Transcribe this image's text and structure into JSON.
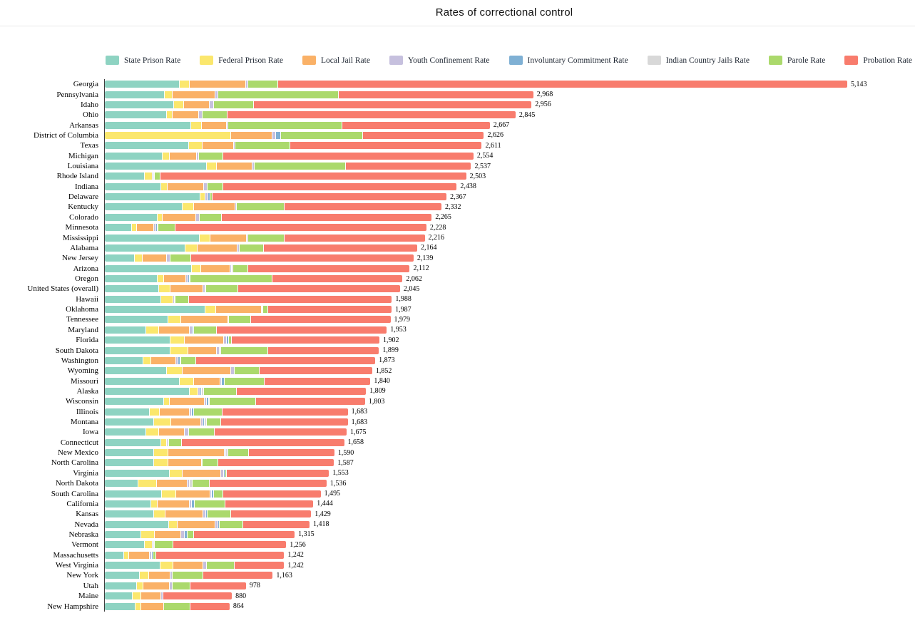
{
  "title": "Rates of correctional control",
  "colors": {
    "state_prison": "#8ed3c2",
    "federal_prison": "#fbe76d",
    "local_jail": "#fab167",
    "youth_confinement": "#c6c0de",
    "involuntary_commitment": "#7fb0d4",
    "indian_country_jails": "#d8d8d8",
    "parole": "#abd96c",
    "probation": "#f87c6d"
  },
  "legend": [
    {
      "key": "state_prison",
      "label": "State Prison Rate"
    },
    {
      "key": "federal_prison",
      "label": "Federal Prison Rate"
    },
    {
      "key": "local_jail",
      "label": "Local Jail Rate"
    },
    {
      "key": "youth_confinement",
      "label": "Youth Confinement Rate"
    },
    {
      "key": "involuntary_commitment",
      "label": "Involuntary Commitment Rate"
    },
    {
      "key": "indian_country_jails",
      "label": "Indian Country Jails Rate"
    },
    {
      "key": "parole",
      "label": "Parole Rate"
    },
    {
      "key": "probation",
      "label": "Probation Rate"
    }
  ],
  "chart_data": {
    "type": "bar",
    "orientation": "horizontal",
    "stacked": true,
    "grid": false,
    "x_axis": {
      "min": 0,
      "max": 5143,
      "ticks_visible": false
    },
    "series_order": [
      "state_prison",
      "federal_prison",
      "local_jail",
      "youth_confinement",
      "involuntary_commitment",
      "indian_country_jails",
      "parole",
      "probation"
    ],
    "rows": [
      {
        "label": "Georgia",
        "total_label": "5,143",
        "values": [
          520,
          69,
          389,
          16,
          0,
          0,
          209,
          3940
        ]
      },
      {
        "label": "Pennsylvania",
        "total_label": "2,968",
        "values": [
          413,
          57,
          294,
          22,
          0,
          0,
          833,
          1349
        ]
      },
      {
        "label": "Idaho",
        "total_label": "2,956",
        "values": [
          478,
          68,
          180,
          29,
          0,
          0,
          280,
          1921
        ]
      },
      {
        "label": "Ohio",
        "total_label": "2,845",
        "values": [
          431,
          40,
          183,
          22,
          0,
          0,
          173,
          1996
        ]
      },
      {
        "label": "Arkansas",
        "total_label": "2,667",
        "values": [
          600,
          72,
          173,
          12,
          0,
          0,
          790,
          1020
        ]
      },
      {
        "label": "District of Columbia",
        "total_label": "2,626",
        "values": [
          0,
          876,
          287,
          25,
          32,
          0,
          567,
          839
        ]
      },
      {
        "label": "Texas",
        "total_label": "2,611",
        "values": [
          582,
          97,
          215,
          12,
          0,
          0,
          377,
          1328
        ]
      },
      {
        "label": "Michigan",
        "total_label": "2,554",
        "values": [
          402,
          47,
          187,
          16,
          0,
          0,
          169,
          1733
        ]
      },
      {
        "label": "Louisiana",
        "total_label": "2,537",
        "values": [
          705,
          72,
          246,
          15,
          0,
          0,
          630,
          869
        ]
      },
      {
        "label": "Rhode Island",
        "total_label": "2,503",
        "values": [
          277,
          54,
          0,
          10,
          6,
          0,
          40,
          2116
        ]
      },
      {
        "label": "Indiana",
        "total_label": "2,438",
        "values": [
          388,
          47,
          251,
          25,
          0,
          0,
          111,
          1616
        ]
      },
      {
        "label": "Delaware",
        "total_label": "2,367",
        "values": [
          662,
          36,
          0,
          16,
          16,
          0,
          16,
          1621
        ]
      },
      {
        "label": "Kentucky",
        "total_label": "2,332",
        "values": [
          540,
          79,
          287,
          10,
          0,
          0,
          330,
          1086
        ]
      },
      {
        "label": "Colorado",
        "total_label": "2,265",
        "values": [
          365,
          36,
          230,
          25,
          0,
          0,
          155,
          1454
        ]
      },
      {
        "label": "Minnesota",
        "total_label": "2,228",
        "values": [
          187,
          36,
          119,
          15,
          10,
          5,
          119,
          1737
        ]
      },
      {
        "label": "Mississippi",
        "total_label": "2,216",
        "values": [
          655,
          76,
          251,
          10,
          0,
          0,
          255,
          969
        ]
      },
      {
        "label": "Alabama",
        "total_label": "2,164",
        "values": [
          560,
          83,
          277,
          12,
          0,
          0,
          172,
          1060
        ]
      },
      {
        "label": "New Jersey",
        "total_label": "2,139",
        "values": [
          208,
          54,
          169,
          25,
          0,
          0,
          144,
          1539
        ]
      },
      {
        "label": "Arizona",
        "total_label": "2,112",
        "values": [
          605,
          61,
          205,
          10,
          0,
          8,
          104,
          1119
        ]
      },
      {
        "label": "Oregon",
        "total_label": "2,062",
        "values": [
          366,
          43,
          155,
          15,
          10,
          4,
          568,
          901
        ]
      },
      {
        "label": "United States (overall)",
        "total_label": "2,045",
        "values": [
          377,
          79,
          226,
          14,
          6,
          1,
          219,
          1123
        ]
      },
      {
        "label": "Hawaii",
        "total_label": "1,988",
        "values": [
          392,
          83,
          0,
          8,
          5,
          0,
          93,
          1407
        ]
      },
      {
        "label": "Oklahoma",
        "total_label": "1,987",
        "values": [
          697,
          72,
          316,
          8,
          0,
          5,
          32,
          857
        ]
      },
      {
        "label": "Tennessee",
        "total_label": "1,979",
        "values": [
          438,
          90,
          325,
          8,
          0,
          0,
          151,
          967
        ]
      },
      {
        "label": "Maryland",
        "total_label": "1,953",
        "values": [
          287,
          90,
          212,
          18,
          12,
          0,
          155,
          1179
        ]
      },
      {
        "label": "Florida",
        "total_label": "1,902",
        "values": [
          456,
          97,
          273,
          20,
          12,
          0,
          22,
          1022
        ]
      },
      {
        "label": "South Dakota",
        "total_label": "1,899",
        "values": [
          456,
          120,
          201,
          18,
          0,
          12,
          323,
          769
        ]
      },
      {
        "label": "Washington",
        "total_label": "1,873",
        "values": [
          266,
          54,
          172,
          18,
          12,
          5,
          108,
          1238
        ]
      },
      {
        "label": "Wyoming",
        "total_label": "1,852",
        "values": [
          431,
          110,
          334,
          25,
          0,
          0,
          172,
          780
        ]
      },
      {
        "label": "Missouri",
        "total_label": "1,840",
        "values": [
          520,
          100,
          180,
          12,
          18,
          0,
          275,
          735
        ]
      },
      {
        "label": "Alaska",
        "total_label": "1,809",
        "values": [
          589,
          57,
          0,
          15,
          10,
          18,
          226,
          894
        ]
      },
      {
        "label": "Wisconsin",
        "total_label": "1,803",
        "values": [
          409,
          40,
          241,
          15,
          18,
          5,
          320,
          755
        ]
      },
      {
        "label": "Illinois",
        "total_label": "1,683",
        "values": [
          313,
          65,
          212,
          14,
          14,
          0,
          198,
          867
        ]
      },
      {
        "label": "Montana",
        "total_label": "1,683",
        "values": [
          341,
          120,
          208,
          15,
          10,
          15,
          97,
          877
        ]
      },
      {
        "label": "Iowa",
        "total_label": "1,675",
        "values": [
          287,
          90,
          176,
          28,
          0,
          0,
          180,
          914
        ]
      },
      {
        "label": "Connecticut",
        "total_label": "1,658",
        "values": [
          388,
          43,
          0,
          8,
          7,
          0,
          90,
          1122
        ]
      },
      {
        "label": "New Mexico",
        "total_label": "1,590",
        "values": [
          341,
          97,
          390,
          12,
          0,
          16,
          140,
          594
        ]
      },
      {
        "label": "North Carolina",
        "total_label": "1,587",
        "values": [
          341,
          100,
          230,
          8,
          0,
          0,
          108,
          800
        ]
      },
      {
        "label": "Virginia",
        "total_label": "1,553",
        "values": [
          449,
          90,
          266,
          18,
          12,
          0,
          12,
          706
        ]
      },
      {
        "label": "North Dakota",
        "total_label": "1,536",
        "values": [
          230,
          129,
          215,
          12,
          0,
          23,
          115,
          812
        ]
      },
      {
        "label": "South Carolina",
        "total_label": "1,495",
        "values": [
          395,
          100,
          234,
          12,
          13,
          0,
          65,
          676
        ]
      },
      {
        "label": "California",
        "total_label": "1,444",
        "values": [
          320,
          47,
          223,
          14,
          21,
          0,
          208,
          611
        ]
      },
      {
        "label": "Kansas",
        "total_label": "1,429",
        "values": [
          341,
          79,
          262,
          20,
          10,
          0,
          162,
          555
        ]
      },
      {
        "label": "Nevada",
        "total_label": "1,418",
        "values": [
          445,
          57,
          266,
          16,
          12,
          0,
          162,
          460
        ]
      },
      {
        "label": "Nebraska",
        "total_label": "1,315",
        "values": [
          251,
          97,
          180,
          25,
          20,
          0,
          43,
          699
        ]
      },
      {
        "label": "Vermont",
        "total_label": "1,256",
        "values": [
          277,
          54,
          0,
          8,
          7,
          0,
          129,
          781
        ]
      },
      {
        "label": "Massachusetts",
        "total_label": "1,242",
        "values": [
          133,
          36,
          144,
          15,
          10,
          0,
          20,
          884
        ]
      },
      {
        "label": "West Virginia",
        "total_label": "1,242",
        "values": [
          384,
          90,
          208,
          25,
          0,
          0,
          190,
          345
        ]
      },
      {
        "label": "New York",
        "total_label": "1,163",
        "values": [
          241,
          65,
          151,
          10,
          0,
          0,
          215,
          481
        ]
      },
      {
        "label": "Utah",
        "total_label": "978",
        "values": [
          220,
          48,
          181,
          20,
          0,
          0,
          124,
          385
        ]
      },
      {
        "label": "Maine",
        "total_label": "880",
        "values": [
          192,
          59,
          139,
          15,
          0,
          0,
          0,
          475
        ]
      },
      {
        "label": "New Hampshire",
        "total_label": "864",
        "values": [
          214,
          37,
          161,
          0,
          0,
          0,
          183,
          269
        ]
      }
    ]
  }
}
